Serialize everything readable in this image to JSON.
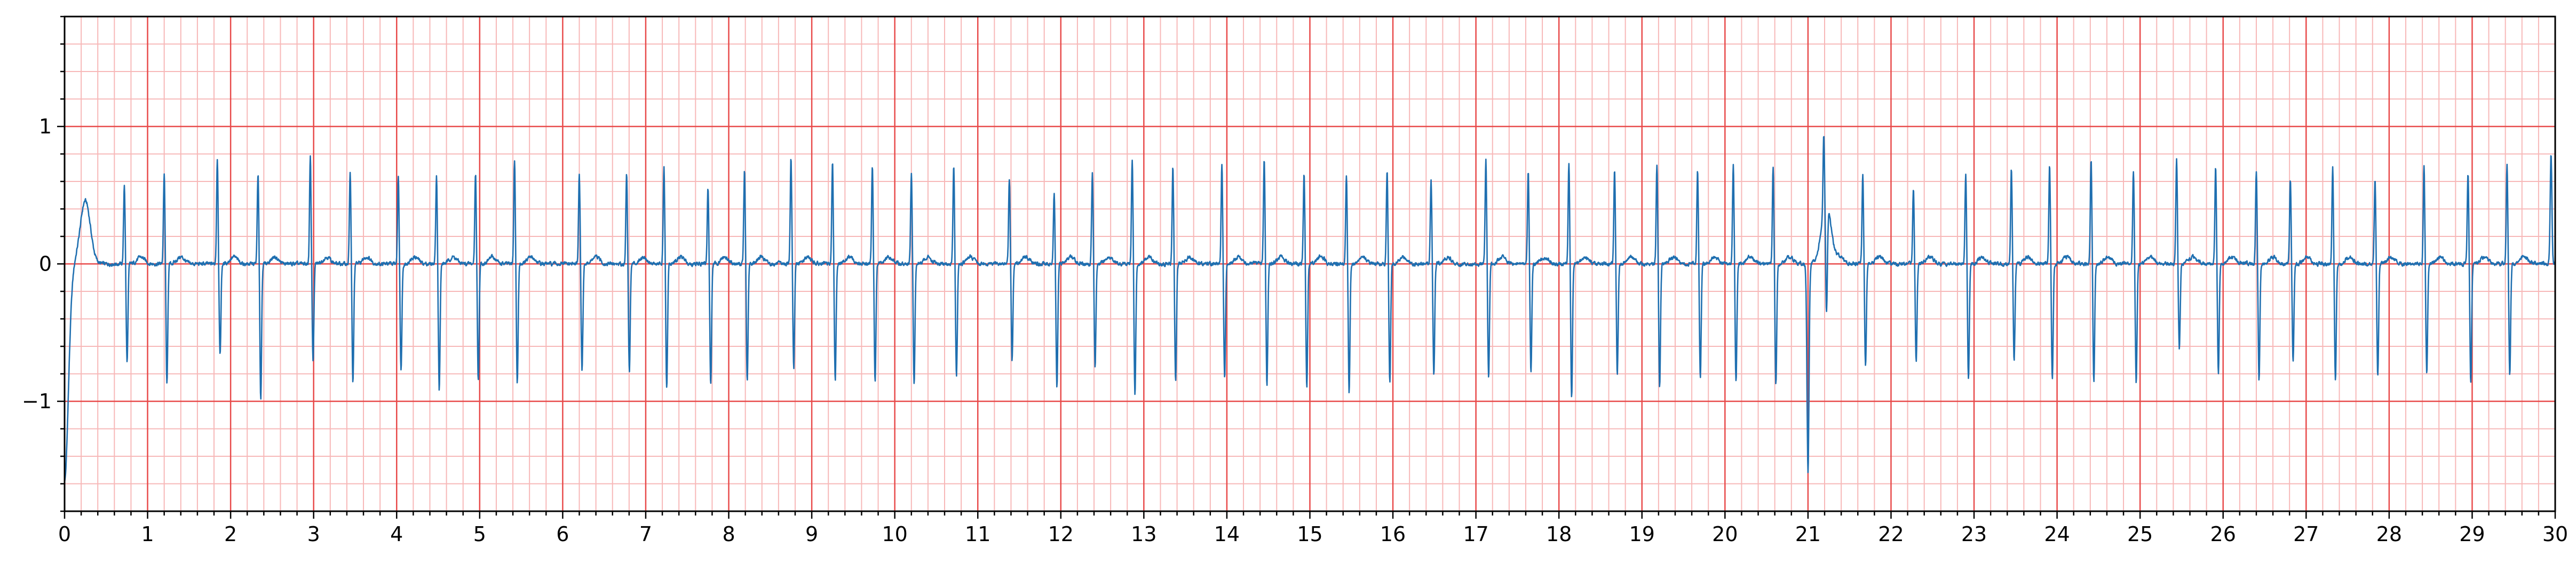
{
  "chart_data": {
    "type": "line",
    "title": "",
    "xlabel": "",
    "ylabel": "",
    "xlim": [
      0,
      30
    ],
    "ylim": [
      -1.8,
      1.8
    ],
    "grid": "on",
    "x_ticks": [
      0,
      1,
      2,
      3,
      4,
      5,
      6,
      7,
      8,
      9,
      10,
      11,
      12,
      13,
      14,
      15,
      16,
      17,
      18,
      19,
      20,
      21,
      22,
      23,
      24,
      25,
      26,
      27,
      28,
      29,
      30
    ],
    "x_tick_labels": [
      "0",
      "1",
      "2",
      "3",
      "4",
      "5",
      "6",
      "7",
      "8",
      "9",
      "10",
      "11",
      "12",
      "13",
      "14",
      "15",
      "16",
      "17",
      "18",
      "19",
      "20",
      "21",
      "22",
      "23",
      "24",
      "25",
      "26",
      "27",
      "28",
      "29",
      "30"
    ],
    "y_ticks": [
      -1,
      0,
      1
    ],
    "y_tick_labels": [
      "−1",
      "0",
      "1"
    ],
    "grid_major_x": 1,
    "grid_major_y": 1,
    "grid_minor": 0.2,
    "colors": {
      "trace": "#1f6fb0",
      "major_grid": "#e84a4a",
      "minor_grid": "#f7b8b8",
      "axis": "#000000"
    },
    "series": [
      {
        "name": "ECG",
        "beat_times": [
          0.72,
          1.2,
          1.84,
          2.33,
          2.96,
          3.44,
          4.02,
          4.48,
          4.95,
          5.42,
          6.2,
          6.77,
          7.22,
          7.75,
          8.19,
          8.75,
          9.25,
          9.73,
          10.2,
          10.71,
          11.38,
          11.92,
          12.38,
          12.86,
          13.35,
          13.94,
          14.45,
          14.93,
          15.44,
          15.93,
          16.46,
          17.12,
          17.63,
          18.12,
          18.67,
          19.18,
          19.67,
          20.1,
          20.58,
          21.19,
          21.66,
          22.27,
          22.9,
          23.45,
          23.91,
          24.41,
          24.92,
          25.44,
          25.91,
          26.4,
          26.81,
          27.32,
          27.83,
          28.42,
          28.95,
          29.42
        ],
        "beat_r_peaks": [
          0.58,
          0.66,
          0.77,
          0.66,
          0.78,
          0.67,
          0.64,
          0.65,
          0.66,
          0.76,
          0.66,
          0.66,
          0.7,
          0.55,
          0.68,
          0.78,
          0.74,
          0.71,
          0.66,
          0.71,
          0.62,
          0.52,
          0.66,
          0.76,
          0.7,
          0.74,
          0.77,
          0.68,
          0.64,
          0.68,
          0.62,
          0.76,
          0.68,
          0.73,
          0.68,
          0.72,
          0.68,
          0.72,
          0.7,
          0.56,
          0.66,
          0.56,
          0.66,
          0.7,
          0.72,
          0.76,
          0.68,
          0.78,
          0.72,
          0.68,
          0.62,
          0.7,
          0.62,
          0.72,
          0.66,
          0.72
        ],
        "beat_s_troughs": [
          -0.72,
          -0.88,
          -0.67,
          -0.98,
          -0.7,
          -0.87,
          -0.78,
          -0.92,
          -0.84,
          -0.87,
          -0.78,
          -0.78,
          -0.91,
          -0.88,
          -0.86,
          -0.76,
          -0.84,
          -0.85,
          -0.88,
          -0.82,
          -0.7,
          -0.9,
          -0.74,
          -0.95,
          -0.86,
          -0.84,
          -0.88,
          -0.9,
          -0.93,
          -0.86,
          -0.8,
          -0.84,
          -0.78,
          -0.98,
          -0.8,
          -0.9,
          -0.82,
          -0.86,
          -0.88,
          -0.78,
          -0.76,
          -0.7,
          -0.84,
          -0.7,
          -0.84,
          -0.85,
          -0.86,
          -0.62,
          -0.8,
          -0.84,
          -0.72,
          -0.84,
          -0.82,
          -0.8,
          -0.86,
          -0.82
        ],
        "baseline_noise": 0.025,
        "ectopic_events": [
          {
            "t": 0.0,
            "trough": -1.58,
            "hump_t": 0.25,
            "hump_peak": 0.46
          },
          {
            "t": 21.0,
            "trough": -1.52,
            "hump_t": 21.22,
            "hump_peak": 0.42
          }
        ],
        "final_point": {
          "t": 29.95,
          "value": 0.8
        }
      }
    ]
  }
}
